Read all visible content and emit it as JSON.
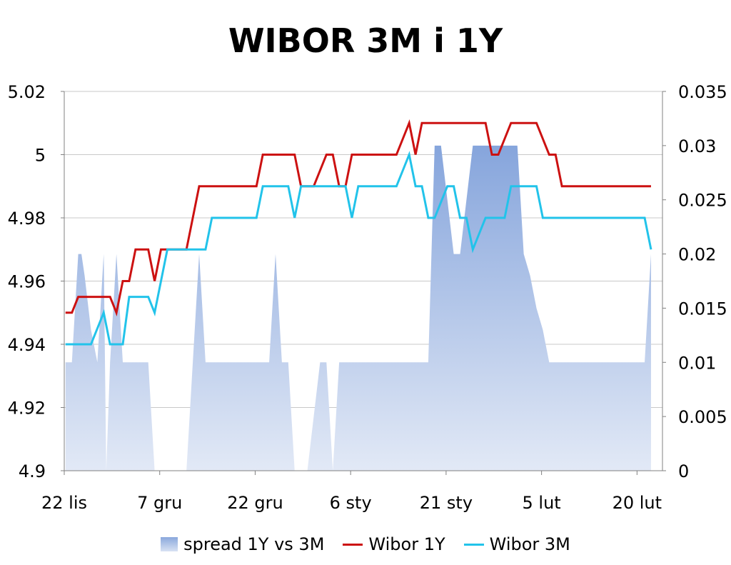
{
  "chart_data": {
    "type": "line",
    "title": "WIBOR 3M i 1Y",
    "x_tick_labels": [
      "22 lis",
      "7 gru",
      "22 gru",
      "6 sty",
      "21 sty",
      "5 lut",
      "20 lut"
    ],
    "x_tick_days": [
      0,
      15,
      30,
      45,
      60,
      75,
      90
    ],
    "y_left": {
      "range": [
        4.9,
        5.02
      ],
      "ticks": [
        "4.9",
        "4.92",
        "4.94",
        "4.96",
        "4.98",
        "5",
        "5.02"
      ]
    },
    "y_right": {
      "range": [
        0,
        0.035
      ],
      "ticks": [
        "0",
        "0.005",
        "0.01",
        "0.015",
        "0.02",
        "0.025",
        "0.03",
        "0.035"
      ]
    },
    "grid": true,
    "legend_position": "bottom",
    "series": [
      {
        "name": "spread 1Y vs 3M",
        "kind": "area",
        "axis": "right",
        "color": "#9db4e0",
        "x": [
          0.2,
          0.7,
          1.2,
          2.2,
          2.7,
          3.2,
          4.2,
          5.2,
          6.2,
          6.6,
          7.2,
          8.2,
          9.2,
          10.2,
          11.2,
          12.2,
          13.2,
          14.2,
          15.2,
          16.2,
          17.2,
          18.2,
          19.2,
          20.2,
          21.2,
          22.2,
          23.2,
          24.2,
          25.2,
          26.2,
          27.2,
          28.2,
          29.2,
          30.2,
          31.2,
          32.2,
          33.2,
          34.2,
          35.2,
          36.2,
          37.2,
          38.2,
          39.2,
          40.2,
          41.2,
          42.2,
          43.2,
          44.2,
          45.2,
          46.2,
          47.2,
          48.2,
          49.2,
          50.2,
          51.2,
          52.2,
          53.2,
          54.2,
          55.2,
          56.2,
          57.2,
          58.2,
          59.2,
          60.2,
          61.2,
          62.2,
          63.2,
          64.2,
          65.2,
          66.2,
          67.2,
          68.2,
          69.2,
          70.2,
          71.2,
          72.2,
          73.2,
          74.2,
          75.2,
          76.2,
          77.2,
          78.2,
          79.2,
          80.2,
          81.2,
          82.2,
          83.2,
          84.2,
          85.2,
          86.2,
          87.2,
          88.2,
          89.2,
          90.2,
          91.2,
          92.2
        ],
        "values": [
          0.01,
          0.01,
          0.01,
          0.02,
          0.02,
          0.018,
          0.013,
          0.01,
          0.02,
          0.0,
          0.01,
          0.02,
          0.01,
          0.01,
          0.01,
          0.01,
          0.01,
          0.0,
          0.0,
          0.0,
          0.0,
          0.0,
          0.0,
          0.01,
          0.02,
          0.01,
          0.01,
          0.01,
          0.01,
          0.01,
          0.01,
          0.01,
          0.01,
          0.01,
          0.01,
          0.01,
          0.02,
          0.01,
          0.01,
          0.0,
          0.0,
          0.0,
          0.005,
          0.01,
          0.01,
          0.0,
          0.01,
          0.01,
          0.01,
          0.01,
          0.01,
          0.01,
          0.01,
          0.01,
          0.01,
          0.01,
          0.01,
          0.01,
          0.01,
          0.01,
          0.01,
          0.03,
          0.03,
          0.025,
          0.02,
          0.02,
          0.025,
          0.03,
          0.03,
          0.03,
          0.03,
          0.03,
          0.03,
          0.03,
          0.03,
          0.02,
          0.018,
          0.015,
          0.013,
          0.01,
          0.01,
          0.01,
          0.01,
          0.01,
          0.01,
          0.01,
          0.01,
          0.01,
          0.01,
          0.01,
          0.01,
          0.01,
          0.01,
          0.01,
          0.01,
          0.02
        ]
      },
      {
        "name": "Wibor 1Y",
        "kind": "line",
        "axis": "left",
        "color": "#cc1111",
        "x": [
          0.2,
          1.2,
          2.2,
          3.2,
          4.2,
          5.2,
          6.2,
          7.2,
          8.2,
          9.2,
          10.2,
          11.2,
          12.2,
          13.2,
          14.2,
          15.2,
          16.2,
          17.2,
          18.2,
          19.2,
          20.2,
          21.2,
          22.2,
          23.2,
          24.2,
          25.2,
          26.2,
          27.2,
          28.2,
          29.2,
          30.2,
          31.2,
          32.2,
          33.2,
          34.2,
          35.2,
          36.2,
          37.2,
          38.2,
          39.2,
          40.2,
          41.2,
          42.2,
          43.2,
          44.2,
          45.2,
          46.2,
          47.2,
          48.2,
          49.2,
          50.2,
          51.2,
          52.2,
          53.2,
          54.2,
          55.2,
          56.2,
          57.2,
          58.2,
          59.2,
          60.2,
          61.2,
          62.2,
          63.2,
          64.2,
          65.2,
          66.2,
          67.2,
          68.2,
          69.2,
          70.2,
          71.2,
          72.2,
          73.2,
          74.2,
          75.2,
          76.2,
          77.2,
          78.2,
          79.2,
          80.2,
          81.2,
          82.2,
          83.2,
          84.2,
          85.2,
          86.2,
          87.2,
          88.2,
          89.2,
          90.2,
          91.2,
          92.2
        ],
        "values": [
          4.95,
          4.95,
          4.955,
          4.955,
          4.955,
          4.955,
          4.955,
          4.955,
          4.95,
          4.96,
          4.96,
          4.97,
          4.97,
          4.97,
          4.96,
          4.97,
          4.97,
          4.97,
          4.97,
          4.97,
          4.98,
          4.99,
          4.99,
          4.99,
          4.99,
          4.99,
          4.99,
          4.99,
          4.99,
          4.99,
          4.99,
          5.0,
          5.0,
          5.0,
          5.0,
          5.0,
          5.0,
          4.99,
          4.99,
          4.99,
          4.995,
          5.0,
          5.0,
          4.99,
          4.99,
          5.0,
          5.0,
          5.0,
          5.0,
          5.0,
          5.0,
          5.0,
          5.0,
          5.005,
          5.01,
          5.0,
          5.01,
          5.01,
          5.01,
          5.01,
          5.01,
          5.01,
          5.01,
          5.01,
          5.01,
          5.01,
          5.01,
          5.0,
          5.0,
          5.005,
          5.01,
          5.01,
          5.01,
          5.01,
          5.01,
          5.005,
          5.0,
          5.0,
          4.99,
          4.99,
          4.99,
          4.99,
          4.99,
          4.99,
          4.99,
          4.99,
          4.99,
          4.99,
          4.99,
          4.99,
          4.99,
          4.99,
          4.99
        ]
      },
      {
        "name": "Wibor 3M",
        "kind": "line",
        "axis": "left",
        "color": "#22c3ea",
        "x": [
          0.2,
          1.2,
          2.2,
          3.2,
          4.2,
          5.2,
          6.2,
          7.2,
          8.2,
          9.2,
          10.2,
          11.2,
          12.2,
          13.2,
          14.2,
          15.2,
          16.2,
          17.2,
          18.2,
          19.2,
          20.2,
          21.2,
          22.2,
          23.2,
          24.2,
          25.2,
          26.2,
          27.2,
          28.2,
          29.2,
          30.2,
          31.2,
          32.2,
          33.2,
          34.2,
          35.2,
          36.2,
          37.2,
          38.2,
          39.2,
          40.2,
          41.2,
          42.2,
          43.2,
          44.2,
          45.2,
          46.2,
          47.2,
          48.2,
          49.2,
          50.2,
          51.2,
          52.2,
          53.2,
          54.2,
          55.2,
          56.2,
          57.2,
          58.2,
          59.2,
          60.2,
          61.2,
          62.2,
          63.2,
          64.2,
          65.2,
          66.2,
          67.2,
          68.2,
          69.2,
          70.2,
          71.2,
          72.2,
          73.2,
          74.2,
          75.2,
          76.2,
          77.2,
          78.2,
          79.2,
          80.2,
          81.2,
          82.2,
          83.2,
          84.2,
          85.2,
          86.2,
          87.2,
          88.2,
          89.2,
          90.2,
          91.2,
          92.2
        ],
        "values": [
          4.94,
          4.94,
          4.94,
          4.94,
          4.94,
          4.945,
          4.95,
          4.94,
          4.94,
          4.94,
          4.955,
          4.955,
          4.955,
          4.955,
          4.95,
          4.96,
          4.97,
          4.97,
          4.97,
          4.97,
          4.97,
          4.97,
          4.97,
          4.98,
          4.98,
          4.98,
          4.98,
          4.98,
          4.98,
          4.98,
          4.98,
          4.99,
          4.99,
          4.99,
          4.99,
          4.99,
          4.98,
          4.99,
          4.99,
          4.99,
          4.99,
          4.99,
          4.99,
          4.99,
          4.99,
          4.98,
          4.99,
          4.99,
          4.99,
          4.99,
          4.99,
          4.99,
          4.99,
          4.995,
          5.0,
          4.99,
          4.99,
          4.98,
          4.98,
          4.985,
          4.99,
          4.99,
          4.98,
          4.98,
          4.97,
          4.975,
          4.98,
          4.98,
          4.98,
          4.98,
          4.99,
          4.99,
          4.99,
          4.99,
          4.99,
          4.98,
          4.98,
          4.98,
          4.98,
          4.98,
          4.98,
          4.98,
          4.98,
          4.98,
          4.98,
          4.98,
          4.98,
          4.98,
          4.98,
          4.98,
          4.98,
          4.98,
          4.97
        ]
      }
    ]
  }
}
